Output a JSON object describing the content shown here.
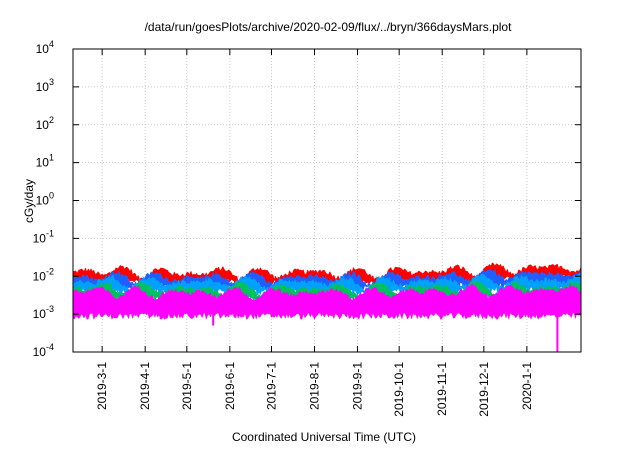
{
  "chart_data": {
    "type": "area",
    "title": "/data/run/goesPlots/archive/2020-02-09/flux/../bryn/366daysMars.plot",
    "xlabel": "Coordinated Universal Time (UTC)",
    "ylabel": "cGy/day",
    "yscale": "log",
    "ylim": [
      0.0001,
      10000
    ],
    "xlim": [
      "2019-02-08",
      "2020-02-09"
    ],
    "grid": true,
    "y_ticks": [
      {
        "base": "10",
        "exp": "-4",
        "value": 0.0001
      },
      {
        "base": "10",
        "exp": "-3",
        "value": 0.001
      },
      {
        "base": "10",
        "exp": "-2",
        "value": 0.01
      },
      {
        "base": "10",
        "exp": "-1",
        "value": 0.1
      },
      {
        "base": "10",
        "exp": "0",
        "value": 1
      },
      {
        "base": "10",
        "exp": "1",
        "value": 10
      },
      {
        "base": "10",
        "exp": "2",
        "value": 100
      },
      {
        "base": "10",
        "exp": "3",
        "value": 1000
      },
      {
        "base": "10",
        "exp": "4",
        "value": 10000
      }
    ],
    "x_ticks": [
      {
        "label": "2019-3-1",
        "date": "2019-03-01"
      },
      {
        "label": "2019-4-1",
        "date": "2019-04-01"
      },
      {
        "label": "2019-5-1",
        "date": "2019-05-01"
      },
      {
        "label": "2019-6-1",
        "date": "2019-06-01"
      },
      {
        "label": "2019-7-1",
        "date": "2019-07-01"
      },
      {
        "label": "2019-8-1",
        "date": "2019-08-01"
      },
      {
        "label": "2019-9-1",
        "date": "2019-09-01"
      },
      {
        "label": "2019-10-1",
        "date": "2019-10-01"
      },
      {
        "label": "2019-11-1",
        "date": "2019-11-01"
      },
      {
        "label": "2019-12-1",
        "date": "2019-12-01"
      },
      {
        "label": "2020-1-1",
        "date": "2020-01-01"
      }
    ],
    "series": [
      {
        "color": "#ff0000",
        "x": [
          "2019-02-08",
          "2019-03-01",
          "2019-04-01",
          "2019-05-01",
          "2019-06-01",
          "2019-07-01",
          "2019-08-01",
          "2019-09-01",
          "2019-10-01",
          "2019-11-01",
          "2019-12-01",
          "2020-01-01",
          "2020-02-09"
        ],
        "y": [
          0.013,
          0.014,
          0.013,
          0.012,
          0.013,
          0.012,
          0.013,
          0.012,
          0.013,
          0.014,
          0.015,
          0.016,
          0.018
        ]
      },
      {
        "color": "#1f5fff",
        "x": [
          "2019-02-08",
          "2019-03-01",
          "2019-04-01",
          "2019-05-01",
          "2019-06-01",
          "2019-07-01",
          "2019-08-01",
          "2019-09-01",
          "2019-10-01",
          "2019-11-01",
          "2019-12-01",
          "2020-01-01",
          "2020-02-09"
        ],
        "y": [
          0.01,
          0.01,
          0.0095,
          0.009,
          0.0095,
          0.009,
          0.0095,
          0.009,
          0.0095,
          0.01,
          0.011,
          0.011,
          0.012
        ]
      },
      {
        "color": "#00a0ff",
        "x": [
          "2019-02-08",
          "2019-03-01",
          "2019-04-01",
          "2019-05-01",
          "2019-06-01",
          "2019-07-01",
          "2019-08-01",
          "2019-09-01",
          "2019-10-01",
          "2019-11-01",
          "2019-12-01",
          "2020-01-01",
          "2020-02-09"
        ],
        "y": [
          0.0075,
          0.0075,
          0.007,
          0.007,
          0.0072,
          0.007,
          0.0072,
          0.007,
          0.0072,
          0.0075,
          0.008,
          0.008,
          0.0085
        ]
      },
      {
        "color": "#00c060",
        "x": [
          "2019-02-08",
          "2019-03-01",
          "2019-04-01",
          "2019-05-01",
          "2019-06-01",
          "2019-07-01",
          "2019-08-01",
          "2019-09-01",
          "2019-10-01",
          "2019-11-01",
          "2019-12-01",
          "2020-01-01",
          "2020-02-09"
        ],
        "y": [
          0.005,
          0.005,
          0.0048,
          0.0046,
          0.0048,
          0.0046,
          0.0048,
          0.0046,
          0.0048,
          0.005,
          0.0052,
          0.0052,
          0.0055
        ]
      },
      {
        "color": "#ff00ff",
        "x": [
          "2019-02-08",
          "2019-03-01",
          "2019-04-01",
          "2019-05-01",
          "2019-06-01",
          "2019-07-01",
          "2019-08-01",
          "2019-09-01",
          "2019-10-01",
          "2019-11-01",
          "2019-12-01",
          "2020-01-01",
          "2020-02-09"
        ],
        "y": [
          0.004,
          0.004,
          0.0038,
          0.0036,
          0.0038,
          0.0036,
          0.0038,
          0.0036,
          0.0038,
          0.004,
          0.0042,
          0.0042,
          0.0045
        ]
      }
    ],
    "annotations": [
      {
        "kind": "dip",
        "date": "2019-05-20",
        "y": 0.0005,
        "color": "#ff00ff"
      },
      {
        "kind": "dip",
        "date": "2020-01-23",
        "y": 0.0001,
        "color": "#ff00ff"
      }
    ]
  }
}
